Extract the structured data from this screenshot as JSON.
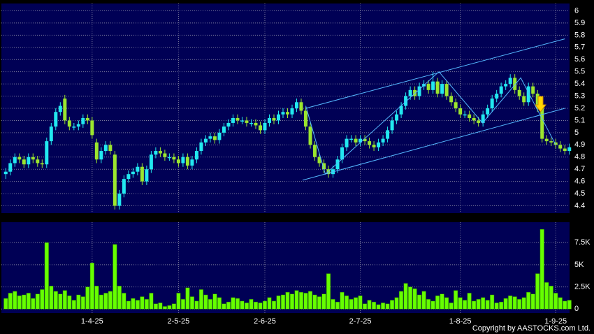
{
  "chart_data": {
    "type": "candlestick",
    "categories": [
      null,
      null,
      null,
      null,
      null,
      null,
      null,
      null,
      null,
      null,
      null,
      null,
      null,
      null,
      null,
      null,
      null,
      null,
      null,
      "1-4-25",
      null,
      null,
      null,
      null,
      null,
      null,
      null,
      null,
      null,
      null,
      null,
      null,
      null,
      null,
      null,
      null,
      null,
      null,
      "2-5-25",
      null,
      null,
      null,
      null,
      null,
      null,
      null,
      null,
      null,
      null,
      null,
      null,
      null,
      null,
      null,
      null,
      null,
      null,
      "2-6-25",
      null,
      null,
      null,
      null,
      null,
      null,
      null,
      null,
      null,
      null,
      null,
      null,
      null,
      null,
      null,
      null,
      null,
      null,
      null,
      null,
      "2-7-25",
      null,
      null,
      null,
      null,
      null,
      null,
      null,
      null,
      null,
      null,
      null,
      null,
      null,
      null,
      null,
      null,
      null,
      null,
      null,
      null,
      null,
      "1-8-25",
      null,
      null,
      null,
      null,
      null,
      null,
      null,
      null,
      null,
      null,
      null,
      null,
      null,
      null,
      null,
      null,
      null,
      null,
      null,
      null,
      "1-9-25",
      null,
      null,
      null
    ],
    "open": [
      4.66,
      4.68,
      4.75,
      4.8,
      4.78,
      4.74,
      4.8,
      4.78,
      4.75,
      4.74,
      4.93,
      5.05,
      5.17,
      5.28,
      5.1,
      5.05,
      5.05,
      5.07,
      5.12,
      5.1,
      4.92,
      4.78,
      4.85,
      4.9,
      4.82,
      4.4,
      4.5,
      4.62,
      4.66,
      4.68,
      4.72,
      4.6,
      4.7,
      4.82,
      4.85,
      4.83,
      4.8,
      4.8,
      4.78,
      4.75,
      4.8,
      4.73,
      4.78,
      4.85,
      4.92,
      4.95,
      4.97,
      4.94,
      5.0,
      5.05,
      5.08,
      5.12,
      5.1,
      5.1,
      5.08,
      5.08,
      5.06,
      5.02,
      5.08,
      5.12,
      5.1,
      5.15,
      5.17,
      5.15,
      5.2,
      5.25,
      5.18,
      5.05,
      4.9,
      4.8,
      4.75,
      4.7,
      4.66,
      4.7,
      4.78,
      4.88,
      4.95,
      4.95,
      4.92,
      4.95,
      4.93,
      4.9,
      4.88,
      4.92,
      4.95,
      5.02,
      5.1,
      5.15,
      5.22,
      5.3,
      5.35,
      5.3,
      5.38,
      5.4,
      5.35,
      5.42,
      5.32,
      5.4,
      5.3,
      5.25,
      5.2,
      5.15,
      5.15,
      5.12,
      5.1,
      5.08,
      5.15,
      5.2,
      5.28,
      5.32,
      5.38,
      5.4,
      5.45,
      5.35,
      5.3,
      5.25,
      5.38,
      5.32,
      5.2,
      4.95,
      4.93,
      4.92,
      4.9,
      4.87,
      4.85
    ],
    "high": [
      4.71,
      4.78,
      4.83,
      4.83,
      4.81,
      4.83,
      4.83,
      4.81,
      4.78,
      4.96,
      5.08,
      5.2,
      5.25,
      5.31,
      5.13,
      5.08,
      5.1,
      5.15,
      5.15,
      5.13,
      4.95,
      4.88,
      4.93,
      4.93,
      4.85,
      4.53,
      4.65,
      4.69,
      4.71,
      4.75,
      4.75,
      4.73,
      4.85,
      4.88,
      4.88,
      4.86,
      4.83,
      4.83,
      4.81,
      4.83,
      4.83,
      4.81,
      4.88,
      4.95,
      4.98,
      5.0,
      5.0,
      5.03,
      5.08,
      5.11,
      5.15,
      5.15,
      5.13,
      5.13,
      5.11,
      5.11,
      5.09,
      5.11,
      5.15,
      5.15,
      5.18,
      5.2,
      5.2,
      5.23,
      5.28,
      5.28,
      5.21,
      5.08,
      4.93,
      4.83,
      4.78,
      4.73,
      4.73,
      4.81,
      4.91,
      4.98,
      4.98,
      4.98,
      4.98,
      4.98,
      4.96,
      4.93,
      4.95,
      4.98,
      5.05,
      5.13,
      5.18,
      5.25,
      5.33,
      5.38,
      5.38,
      5.41,
      5.43,
      5.43,
      5.5,
      5.45,
      5.43,
      5.43,
      5.33,
      5.28,
      5.23,
      5.18,
      5.18,
      5.15,
      5.13,
      5.18,
      5.23,
      5.31,
      5.35,
      5.41,
      5.43,
      5.48,
      5.48,
      5.38,
      5.33,
      5.41,
      5.41,
      5.35,
      5.23,
      4.98,
      4.96,
      4.95,
      4.93,
      4.9,
      4.91
    ],
    "low": [
      4.62,
      4.65,
      4.72,
      4.75,
      4.71,
      4.71,
      4.75,
      4.72,
      4.71,
      4.71,
      4.9,
      5.02,
      5.14,
      5.07,
      5.02,
      5.02,
      5.02,
      5.04,
      5.07,
      4.95,
      4.75,
      4.75,
      4.82,
      4.82,
      4.37,
      4.37,
      4.47,
      4.59,
      4.63,
      4.65,
      4.57,
      4.57,
      4.67,
      4.79,
      4.8,
      4.77,
      4.77,
      4.75,
      4.72,
      4.72,
      4.7,
      4.7,
      4.75,
      4.82,
      4.89,
      4.92,
      4.91,
      4.91,
      4.97,
      5.02,
      5.05,
      5.07,
      5.07,
      5.05,
      5.05,
      5.03,
      4.99,
      4.99,
      5.05,
      5.07,
      5.07,
      5.12,
      5.12,
      5.12,
      5.17,
      5.15,
      5.02,
      4.87,
      4.77,
      4.72,
      4.67,
      4.63,
      4.63,
      4.67,
      4.75,
      4.85,
      4.92,
      4.89,
      4.89,
      4.9,
      4.87,
      4.85,
      4.85,
      4.89,
      4.92,
      4.99,
      5.07,
      5.12,
      5.19,
      5.27,
      5.27,
      5.27,
      5.35,
      5.32,
      5.32,
      5.29,
      5.29,
      5.27,
      5.22,
      5.17,
      5.12,
      5.12,
      5.09,
      5.07,
      5.05,
      5.05,
      5.12,
      5.17,
      5.25,
      5.29,
      5.35,
      5.37,
      5.32,
      5.27,
      5.22,
      5.22,
      5.29,
      5.17,
      4.92,
      4.9,
      4.89,
      4.87,
      4.84,
      4.82,
      4.82
    ],
    "close": [
      4.68,
      4.75,
      4.8,
      4.78,
      4.74,
      4.8,
      4.78,
      4.75,
      4.74,
      4.93,
      5.05,
      5.17,
      5.22,
      5.1,
      5.05,
      5.05,
      5.07,
      5.12,
      5.1,
      4.98,
      4.78,
      4.85,
      4.9,
      4.85,
      4.4,
      4.5,
      4.62,
      4.66,
      4.68,
      4.72,
      4.6,
      4.7,
      4.82,
      4.85,
      4.83,
      4.8,
      4.8,
      4.78,
      4.75,
      4.8,
      4.73,
      4.78,
      4.85,
      4.92,
      4.95,
      4.97,
      4.94,
      5.0,
      5.05,
      5.08,
      5.12,
      5.1,
      5.1,
      5.08,
      5.08,
      5.06,
      5.02,
      5.08,
      5.12,
      5.1,
      5.15,
      5.17,
      5.15,
      5.2,
      5.25,
      5.18,
      5.05,
      4.9,
      4.8,
      4.75,
      4.7,
      4.66,
      4.7,
      4.78,
      4.88,
      4.95,
      4.95,
      4.92,
      4.95,
      4.93,
      4.9,
      4.88,
      4.92,
      4.95,
      5.02,
      5.1,
      5.15,
      5.22,
      5.3,
      5.35,
      5.3,
      5.38,
      5.4,
      5.35,
      5.42,
      5.32,
      5.4,
      5.3,
      5.25,
      5.2,
      5.15,
      5.15,
      5.12,
      5.1,
      5.08,
      5.15,
      5.2,
      5.28,
      5.32,
      5.38,
      5.4,
      5.45,
      5.35,
      5.3,
      5.25,
      5.38,
      5.32,
      5.2,
      4.95,
      4.93,
      4.92,
      4.9,
      4.87,
      4.85,
      4.88
    ],
    "volume": [
      1200,
      1800,
      2000,
      1500,
      1600,
      1800,
      1200,
      1700,
      2200,
      7500,
      2600,
      2000,
      1700,
      2100,
      1500,
      1000,
      1600,
      1400,
      2500,
      5200,
      2600,
      1600,
      1800,
      2000,
      7300,
      2600,
      1800,
      900,
      1200,
      1000,
      1400,
      1100,
      1800,
      600,
      700,
      300,
      400,
      600,
      1800,
      1100,
      2400,
      1400,
      900,
      2200,
      1600,
      1100,
      1700,
      1300,
      600,
      800,
      1300,
      1200,
      900,
      700,
      1100,
      800,
      700,
      900,
      1300,
      900,
      1500,
      1600,
      1900,
      1700,
      2100,
      1900,
      1800,
      2000,
      1600,
      1400,
      1700,
      4000,
      1100,
      800,
      1900,
      1500,
      1100,
      1300,
      1500,
      600,
      1000,
      800,
      500,
      700,
      600,
      1000,
      1300,
      2000,
      2900,
      2500,
      2300,
      1600,
      2000,
      1100,
      900,
      1500,
      1700,
      1300,
      700,
      2100,
      1300,
      1000,
      1800,
      900,
      1100,
      1300,
      1000,
      1600,
      700,
      800,
      1200,
      1500,
      1400,
      1100,
      1300,
      1900,
      1700,
      4000,
      9000,
      3000,
      2600,
      1800,
      1300,
      900,
      1000
    ],
    "up_color": "#22e8f0",
    "down_color": "#9be62e",
    "volume_color": "#66ff00",
    "ylim": [
      4.34,
      6.06
    ],
    "yticks": [
      4.4,
      4.5,
      4.6,
      4.7,
      4.8,
      4.9,
      5,
      5.1,
      5.2,
      5.3,
      5.4,
      5.5,
      5.6,
      5.7,
      5.8,
      5.9,
      6
    ],
    "volume_ylim": [
      -450,
      9800
    ],
    "volume_yticks": [
      0,
      {
        "value": 2500,
        "label": "2.5K"
      },
      {
        "value": 5000,
        "label": "5K"
      },
      {
        "value": 7500,
        "label": "7.5K"
      }
    ],
    "grid": true,
    "trendline_color": "#55b8ff",
    "trendlines": [
      {
        "x": [
          66,
          123
        ],
        "y": [
          5.2,
          5.77
        ]
      },
      {
        "x": [
          65.3,
          123
        ],
        "y": [
          4.61,
          5.2
        ]
      },
      {
        "x": [
          66,
          70.3,
          95.3,
          104.9,
          113.3,
          121
        ],
        "y": [
          5.22,
          4.66,
          5.5,
          5.08,
          5.45,
          4.9
        ]
      }
    ],
    "copyright": "Copyright by AASTOCKS.com Ltd."
  }
}
